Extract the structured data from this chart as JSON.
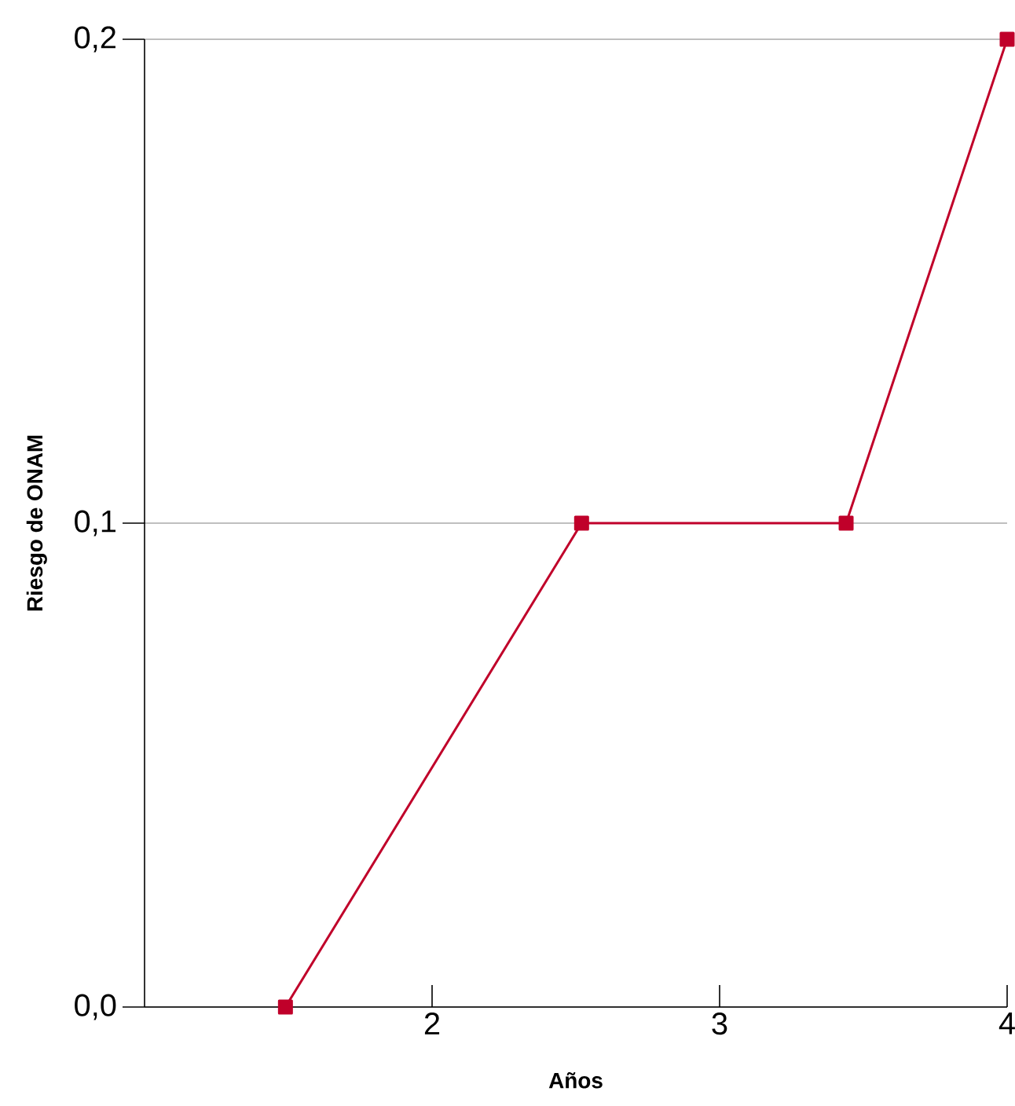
{
  "chart_data": {
    "type": "line",
    "xlabel": "Años",
    "ylabel": "Riesgo de ONAM",
    "x": [
      1.49,
      2.52,
      3.44,
      4
    ],
    "series": [
      {
        "color": "#c0002a",
        "values": [
          0,
          0.1,
          0.1,
          0.2
        ]
      }
    ],
    "xlim": [
      1,
      4
    ],
    "xticks": [
      2,
      3,
      4
    ],
    "ylim": [
      0,
      0.2
    ],
    "yticks": [
      {
        "value": 0,
        "label": "0,0"
      },
      {
        "value": 0.1,
        "label": "0,1"
      },
      {
        "value": 0.2,
        "label": "0,2"
      }
    ],
    "grid": "y",
    "marker": "square",
    "line_style": "solid"
  }
}
